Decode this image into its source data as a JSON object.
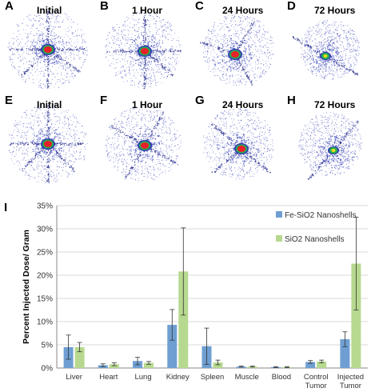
{
  "colors": {
    "fe_bar": "#6f9fd2",
    "sio2_bar": "#b7d98f",
    "dot_blue": "#3a46b8",
    "hot_red": "#e8202a",
    "hot_green": "#27b24a"
  },
  "panels": [
    {
      "letter": "A",
      "title": "Initial",
      "row": 0,
      "col": 0,
      "spread": 1.0,
      "core": "red",
      "arms": [
        0,
        90,
        35,
        135,
        180,
        270
      ],
      "shift": [
        0,
        0
      ]
    },
    {
      "letter": "B",
      "title": "1 Hour",
      "row": 0,
      "col": 1,
      "spread": 0.95,
      "core": "red",
      "arms": [
        0,
        90,
        180,
        270,
        40
      ],
      "shift": [
        2,
        2
      ]
    },
    {
      "letter": "C",
      "title": "24 Hours",
      "row": 0,
      "col": 2,
      "spread": 0.9,
      "core": "red",
      "arms": [
        60,
        200,
        300
      ],
      "shift": [
        -4,
        6
      ]
    },
    {
      "letter": "D",
      "title": "72 Hours",
      "row": 0,
      "col": 3,
      "spread": 0.75,
      "core": "green",
      "arms": [
        30,
        210
      ],
      "shift": [
        -6,
        8
      ]
    },
    {
      "letter": "E",
      "title": "Initial",
      "row": 1,
      "col": 0,
      "spread": 1.0,
      "core": "red",
      "arms": [
        0,
        90,
        45,
        180,
        270,
        135
      ],
      "shift": [
        0,
        0
      ]
    },
    {
      "letter": "F",
      "title": "1 Hour",
      "row": 1,
      "col": 1,
      "spread": 0.95,
      "core": "red",
      "arms": [
        30,
        120,
        210,
        300
      ],
      "shift": [
        2,
        2
      ]
    },
    {
      "letter": "G",
      "title": "24 Hours",
      "row": 1,
      "col": 2,
      "spread": 0.9,
      "core": "red",
      "arms": [
        40,
        140,
        220
      ],
      "shift": [
        4,
        6
      ]
    },
    {
      "letter": "H",
      "title": "72 Hours",
      "row": 1,
      "col": 3,
      "spread": 0.8,
      "core": "green",
      "arms": [
        130,
        310
      ],
      "shift": [
        4,
        8
      ]
    }
  ],
  "chart_data": {
    "type": "bar",
    "panel_letter": "I",
    "ylabel": "Percent Injected Dose/ Gram",
    "xlabel": "",
    "ylim": [
      0,
      35
    ],
    "yticks": [
      "0%",
      "5%",
      "10%",
      "15%",
      "20%",
      "25%",
      "30%",
      "35%"
    ],
    "grid": true,
    "legend_position": "top-right",
    "categories": [
      "Liver",
      "Heart",
      "Lung",
      "Kidney",
      "Spleen",
      "Muscle",
      "Blood",
      [
        "Control",
        "Tumor"
      ],
      [
        "Injected",
        "Tumor"
      ]
    ],
    "series": [
      {
        "name": "Fe-SiO2 Nanoshells",
        "color": "#6f9fd2",
        "values": [
          4.5,
          0.6,
          1.5,
          9.3,
          4.7,
          0.3,
          0.2,
          1.3,
          6.2
        ],
        "errors": [
          2.6,
          0.3,
          0.8,
          3.3,
          3.9,
          0.1,
          0.1,
          0.3,
          1.6
        ]
      },
      {
        "name": "SiO2 Nanoshells",
        "color": "#b7d98f",
        "values": [
          4.5,
          0.8,
          1.1,
          20.8,
          1.2,
          0.3,
          0.2,
          1.4,
          22.5
        ],
        "errors": [
          1.0,
          0.3,
          0.3,
          9.4,
          0.5,
          0.1,
          0.1,
          0.3,
          10.0
        ]
      }
    ]
  }
}
